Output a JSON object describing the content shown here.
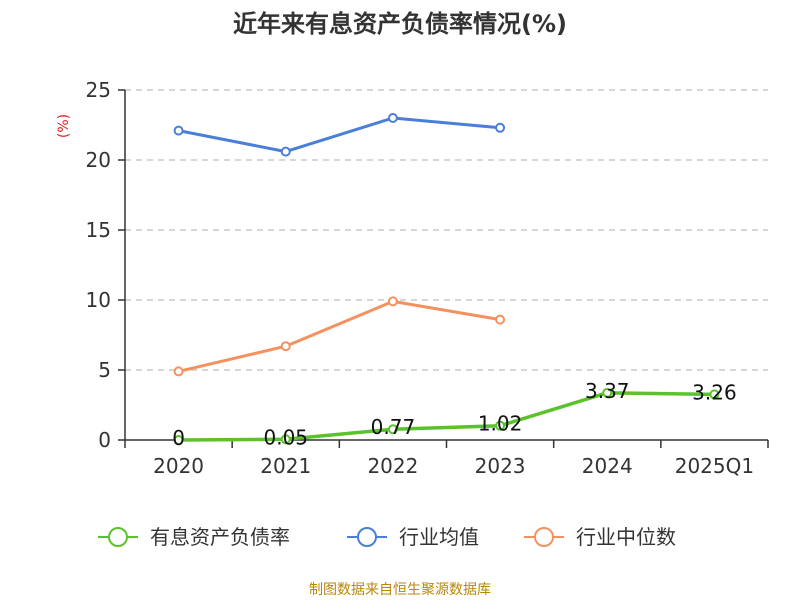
{
  "chart_data": {
    "type": "line",
    "title": "近年来有息资产负债率情况(%)",
    "ylabel": "(%)",
    "categories": [
      "2020",
      "2021",
      "2022",
      "2023",
      "2024",
      "2025Q1"
    ],
    "ylim": [
      0,
      25
    ],
    "yticks": [
      0,
      5,
      10,
      15,
      20,
      25
    ],
    "grid": true,
    "legend_position": "bottom",
    "series": [
      {
        "name": "有息资产负债率",
        "color": "#5cc22c",
        "values": [
          0,
          0.05,
          0.77,
          1.02,
          3.37,
          3.26
        ],
        "labels": [
          "0",
          "0.05",
          "0.77",
          "1.02",
          "3.37",
          "3.26"
        ]
      },
      {
        "name": "行业均值",
        "color": "#4a7fd8",
        "values": [
          22.1,
          20.6,
          23.0,
          22.3,
          null,
          null
        ]
      },
      {
        "name": "行业中位数",
        "color": "#f5915e",
        "values": [
          4.9,
          6.7,
          9.9,
          8.6,
          null,
          null
        ]
      }
    ],
    "source": "制图数据来自恒生聚源数据库"
  }
}
